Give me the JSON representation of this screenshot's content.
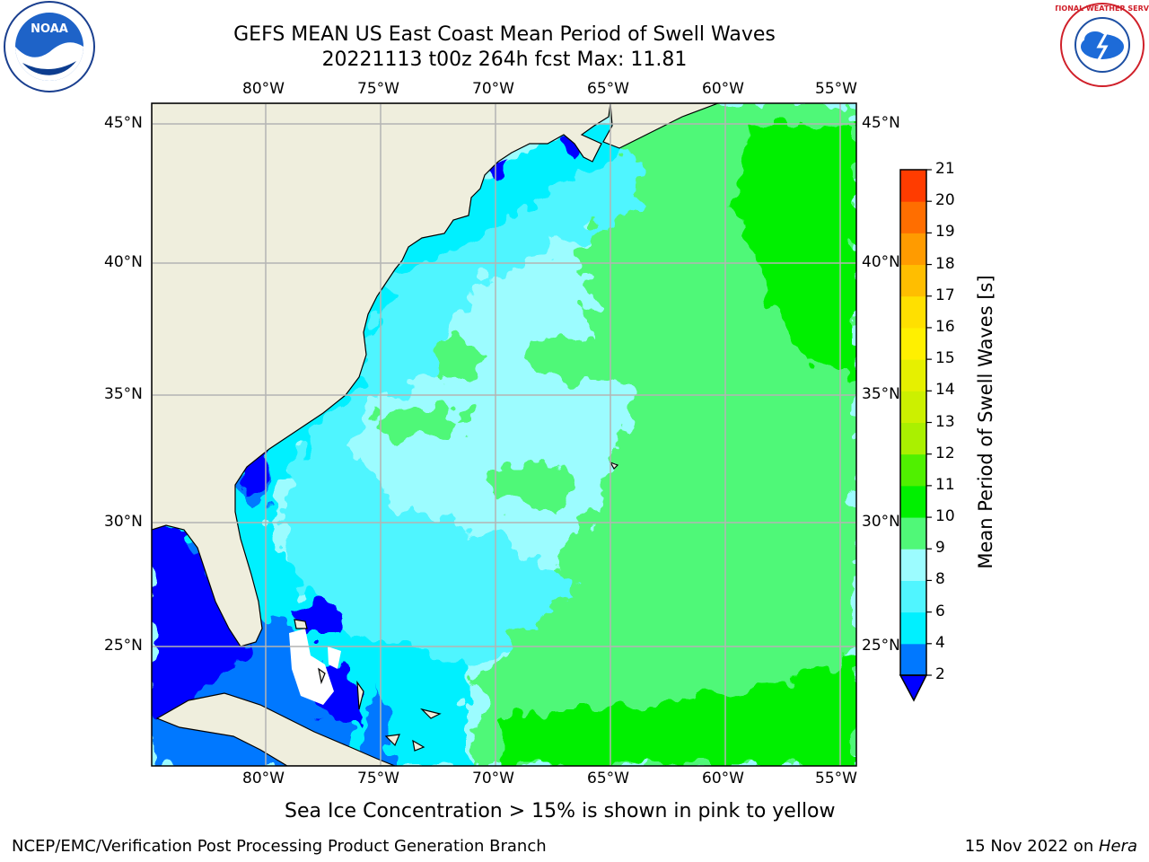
{
  "header": {
    "title_line1": "GEFS MEAN US East Coast Mean Period of Swell Waves",
    "title_line2": "20221113 t00z 264h fcst   Max: 11.81"
  },
  "logos": {
    "left": {
      "icon": "noaa-logo",
      "text": "NOAA"
    },
    "right": {
      "icon": "nws-logo",
      "text": "NATIONAL WEATHER SERVICE"
    }
  },
  "map": {
    "lon_labels": [
      "80°W",
      "75°W",
      "70°W",
      "65°W",
      "60°W",
      "55°W"
    ],
    "lat_labels": [
      "45°N",
      "40°N",
      "35°N",
      "30°N",
      "25°N"
    ],
    "land_color": "#efeedd",
    "grid_color": "#b4b4b4"
  },
  "colorbar": {
    "label": "Mean Period of Swell Waves [s]",
    "ticks": [
      "2",
      "4",
      "6",
      "8",
      "9",
      "10",
      "11",
      "12",
      "13",
      "14",
      "15",
      "16",
      "17",
      "18",
      "19",
      "20",
      "21"
    ],
    "colors": [
      "#0078ff",
      "#00f0ff",
      "#50f5ff",
      "#9cfcff",
      "#50f878",
      "#00f000",
      "#50f000",
      "#aaf000",
      "#ccf000",
      "#e6f000",
      "#fff000",
      "#ffe000",
      "#ffbe00",
      "#ff9b00",
      "#ff6e00",
      "#ff3c00",
      "#ff0000"
    ],
    "under_color": "#0000ff"
  },
  "caption": "Sea Ice Concentration > 15% is shown in pink to yellow",
  "footer": {
    "left": "NCEP/EMC/Verification Post Processing Product Generation Branch",
    "right_date": "15 Nov 2022 on ",
    "right_machine": "Hera"
  }
}
